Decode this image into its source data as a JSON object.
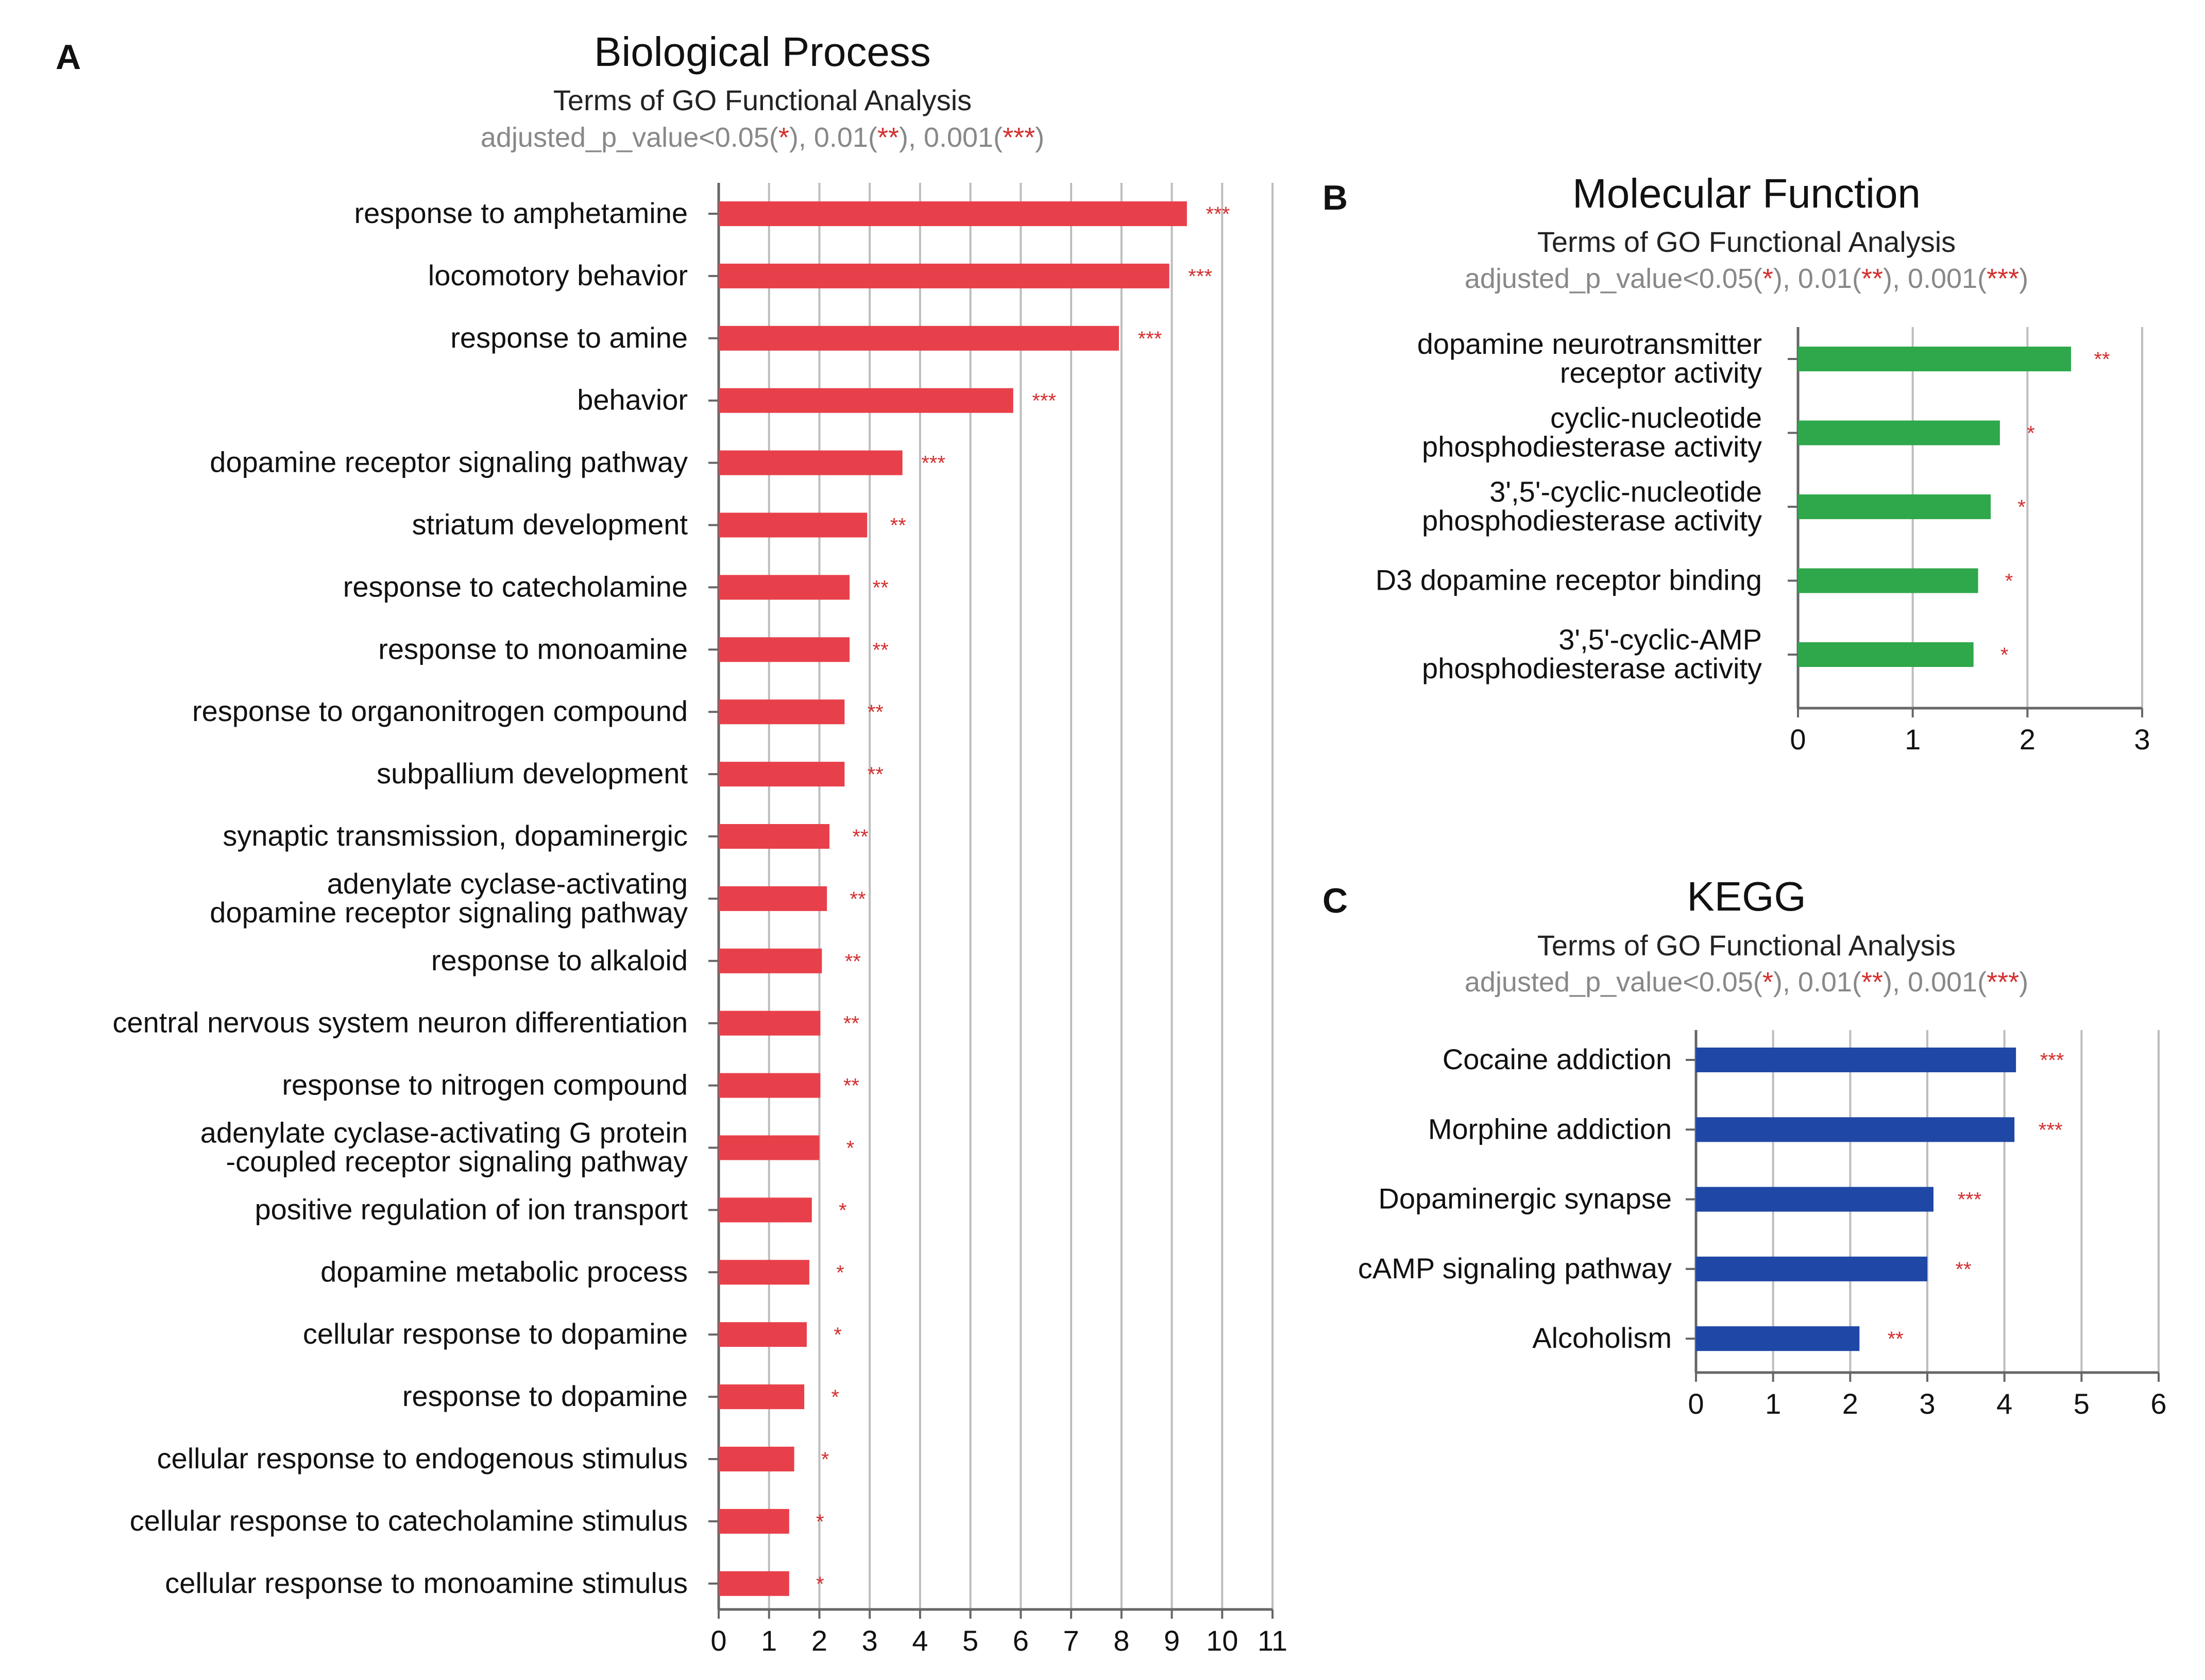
{
  "legend_note": {
    "prefix": "adjusted_p_value<0.05(",
    "sep1": "), 0.01(",
    "sep2": "), 0.001(",
    "suffix": ")",
    "one": "*",
    "two": "**",
    "three": "***"
  },
  "colors": {
    "bp": "#e8404a",
    "mf": "#2ea84a",
    "kegg": "#1f47a6",
    "star": "#d32f2f",
    "grid": "#bdbdbd",
    "axis": "#666666"
  },
  "chart_data": [
    {
      "panel": "A",
      "type": "bar",
      "orientation": "horizontal",
      "title": "Biological Process",
      "subtitle": "Terms of GO Functional Analysis",
      "xlim": [
        0,
        11
      ],
      "xticks": [
        "0",
        "1",
        "2",
        "3",
        "4",
        "5",
        "6",
        "7",
        "8",
        "9",
        "10",
        "11"
      ],
      "grid": true,
      "categories": [
        [
          "response to amphetamine"
        ],
        [
          "locomotory behavior"
        ],
        [
          "response to amine"
        ],
        [
          "behavior"
        ],
        [
          "dopamine receptor signaling pathway"
        ],
        [
          "striatum development"
        ],
        [
          "response to catecholamine"
        ],
        [
          "response to monoamine"
        ],
        [
          "response to organonitrogen compound"
        ],
        [
          "subpallium development"
        ],
        [
          "synaptic transmission, dopaminergic"
        ],
        [
          "adenylate cyclase-activating",
          "dopamine receptor signaling pathway"
        ],
        [
          "response to alkaloid"
        ],
        [
          "central nervous system neuron differentiation"
        ],
        [
          "response to nitrogen compound"
        ],
        [
          "adenylate cyclase-activating G protein",
          "-coupled receptor signaling pathway"
        ],
        [
          "positive regulation of ion transport"
        ],
        [
          "dopamine metabolic process"
        ],
        [
          "cellular response to dopamine"
        ],
        [
          "response to dopamine"
        ],
        [
          "cellular response to endogenous stimulus"
        ],
        [
          "cellular response to catecholamine stimulus"
        ],
        [
          "cellular response to monoamine stimulus"
        ]
      ],
      "values": [
        9.3,
        8.95,
        7.95,
        5.85,
        3.65,
        2.95,
        2.6,
        2.6,
        2.5,
        2.5,
        2.2,
        2.15,
        2.05,
        2.02,
        2.02,
        2.0,
        1.85,
        1.8,
        1.75,
        1.7,
        1.5,
        1.4,
        1.4
      ],
      "significance": [
        "***",
        "***",
        "***",
        "***",
        "***",
        "**",
        "**",
        "**",
        "**",
        "**",
        "**",
        "**",
        "**",
        "**",
        "**",
        "*",
        "*",
        "*",
        "*",
        "*",
        "*",
        "*",
        "*"
      ]
    },
    {
      "panel": "B",
      "type": "bar",
      "orientation": "horizontal",
      "title": "Molecular Function",
      "subtitle": "Terms of GO Functional Analysis",
      "xlim": [
        0,
        3
      ],
      "xticks": [
        "0",
        "1",
        "2",
        "3"
      ],
      "grid": true,
      "categories": [
        [
          "dopamine neurotransmitter",
          "receptor activity"
        ],
        [
          "cyclic-nucleotide",
          "phosphodiesterase activity"
        ],
        [
          "3',5'-cyclic-nucleotide",
          "phosphodiesterase activity"
        ],
        [
          "D3 dopamine receptor binding"
        ],
        [
          "3',5'-cyclic-AMP",
          "phosphodiesterase activity"
        ]
      ],
      "values": [
        2.38,
        1.76,
        1.68,
        1.57,
        1.53
      ],
      "significance": [
        "**",
        "*",
        "*",
        "*",
        "*"
      ]
    },
    {
      "panel": "C",
      "type": "bar",
      "orientation": "horizontal",
      "title": "KEGG",
      "subtitle": "Terms of GO Functional Analysis",
      "xlim": [
        0,
        6
      ],
      "xticks": [
        "0",
        "1",
        "2",
        "3",
        "4",
        "5",
        "6"
      ],
      "grid": true,
      "categories": [
        [
          "Cocaine addiction"
        ],
        [
          "Morphine addiction"
        ],
        [
          "Dopaminergic synapse"
        ],
        [
          "cAMP signaling pathway"
        ],
        [
          "Alcoholism"
        ]
      ],
      "values": [
        4.15,
        4.13,
        3.08,
        3.0,
        2.12
      ],
      "significance": [
        "***",
        "***",
        "***",
        "**",
        "**"
      ]
    }
  ]
}
